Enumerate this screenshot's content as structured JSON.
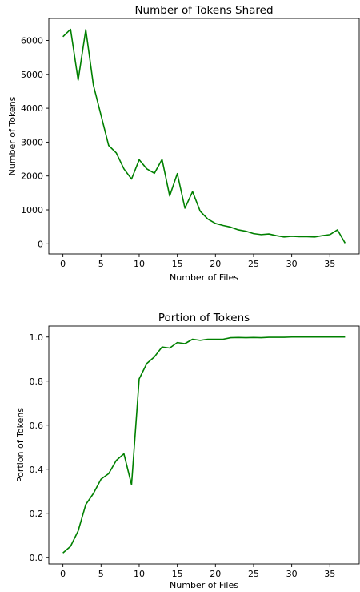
{
  "chart_data": [
    {
      "type": "line",
      "title": "Number of Tokens Shared",
      "xlabel": "Number of Files",
      "ylabel": "Number of Tokens",
      "xlim": [
        -1.85,
        38.85
      ],
      "ylim": [
        -300,
        6650
      ],
      "xticks": [
        0,
        5,
        10,
        15,
        20,
        25,
        30,
        35
      ],
      "yticks": [
        0,
        1000,
        2000,
        3000,
        4000,
        5000,
        6000
      ],
      "grid": false,
      "line_color": "#008000",
      "series": [
        {
          "x": [
            0,
            1,
            2,
            3,
            4,
            5,
            6,
            7,
            8,
            9,
            10,
            11,
            12,
            13,
            14,
            15,
            16,
            17,
            18,
            19,
            20,
            21,
            22,
            23,
            24,
            25,
            26,
            27,
            28,
            29,
            30,
            31,
            32,
            33,
            34,
            35,
            36,
            37
          ],
          "values": [
            6110,
            6330,
            4830,
            6320,
            4680,
            3790,
            2900,
            2680,
            2210,
            1910,
            2480,
            2210,
            2080,
            2490,
            1410,
            2070,
            1050,
            1540,
            960,
            730,
            600,
            540,
            490,
            410,
            370,
            300,
            270,
            290,
            240,
            200,
            220,
            210,
            210,
            200,
            240,
            270,
            410,
            20
          ]
        }
      ]
    },
    {
      "type": "line",
      "title": "Portion of Tokens",
      "xlabel": "Number of Files",
      "ylabel": "Portion of Tokens",
      "xlim": [
        -1.85,
        38.85
      ],
      "ylim": [
        -0.03,
        1.05
      ],
      "xticks": [
        0,
        5,
        10,
        15,
        20,
        25,
        30,
        35
      ],
      "yticks": [
        0.0,
        0.2,
        0.4,
        0.6,
        0.8,
        1.0
      ],
      "grid": false,
      "line_color": "#008000",
      "series": [
        {
          "x": [
            0,
            1,
            2,
            3,
            4,
            5,
            6,
            7,
            8,
            9,
            10,
            11,
            12,
            13,
            14,
            15,
            16,
            17,
            18,
            19,
            20,
            21,
            22,
            23,
            24,
            25,
            26,
            27,
            28,
            29,
            30,
            31,
            32,
            33,
            34,
            35,
            36,
            37
          ],
          "values": [
            0.02,
            0.05,
            0.12,
            0.24,
            0.29,
            0.355,
            0.38,
            0.44,
            0.47,
            0.33,
            0.81,
            0.88,
            0.91,
            0.955,
            0.95,
            0.975,
            0.97,
            0.99,
            0.985,
            0.99,
            0.99,
            0.99,
            0.997,
            0.998,
            0.997,
            0.998,
            0.997,
            0.999,
            0.999,
            0.999,
            1.0,
            1.0,
            1.0,
            1.0,
            1.0,
            1.0,
            1.0,
            1.0
          ]
        }
      ]
    }
  ]
}
